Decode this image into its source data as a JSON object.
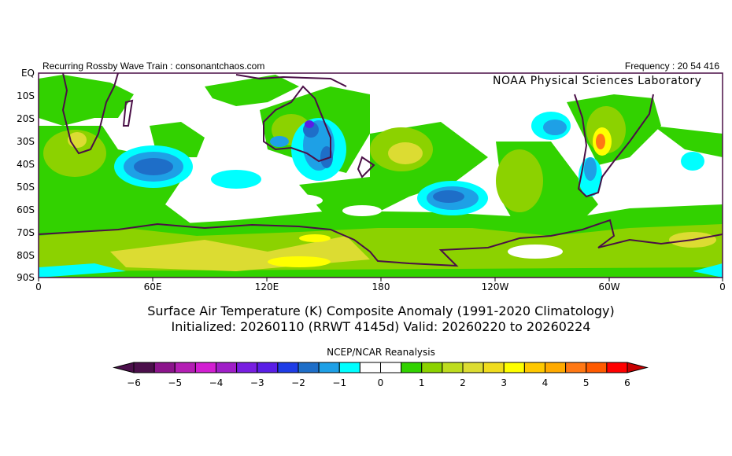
{
  "header": {
    "left_text": "Recurring Rossby Wave Train : consonantchaos.com",
    "right_text": "Frequency : 20 54 416",
    "credit": "NOAA Physical Sciences Laboratory"
  },
  "map": {
    "lat_labels": [
      "EQ",
      "10S",
      "20S",
      "30S",
      "40S",
      "50S",
      "60S",
      "70S",
      "80S",
      "90S"
    ],
    "lon_labels": [
      "0",
      "60E",
      "120E",
      "180",
      "120W",
      "60W",
      "0"
    ],
    "coastline_color": "#4a0f46"
  },
  "title": {
    "line1": "Surface Air Temperature (K) Composite Anomaly (1991-2020 Climatology)",
    "line2": "Initialized: 20260110 (RRWT 4145d) Valid: 20260220 to 20260224"
  },
  "colorbar": {
    "title": "NCEP/NCAR Reanalysis",
    "labels": [
      "-6",
      "-5",
      "-4",
      "-3",
      "-2",
      "-1",
      "0",
      "1",
      "2",
      "3",
      "4",
      "5",
      "6"
    ],
    "under_color": "#4b0f4b",
    "over_color": "#c80000",
    "colors": [
      "#4b0f4b",
      "#8c148c",
      "#b41eb4",
      "#d21ed2",
      "#a01ec8",
      "#781ee1",
      "#5a1ee6",
      "#1e3ce6",
      "#1e6ec8",
      "#1ea0e6",
      "#00ffff",
      "#ffffff",
      "#ffffff",
      "#32d200",
      "#8cd200",
      "#bedc1e",
      "#dcdc32",
      "#f0dc1e",
      "#ffff00",
      "#ffc800",
      "#ffaa00",
      "#ff7814",
      "#ff5a00",
      "#ff0000"
    ]
  }
}
